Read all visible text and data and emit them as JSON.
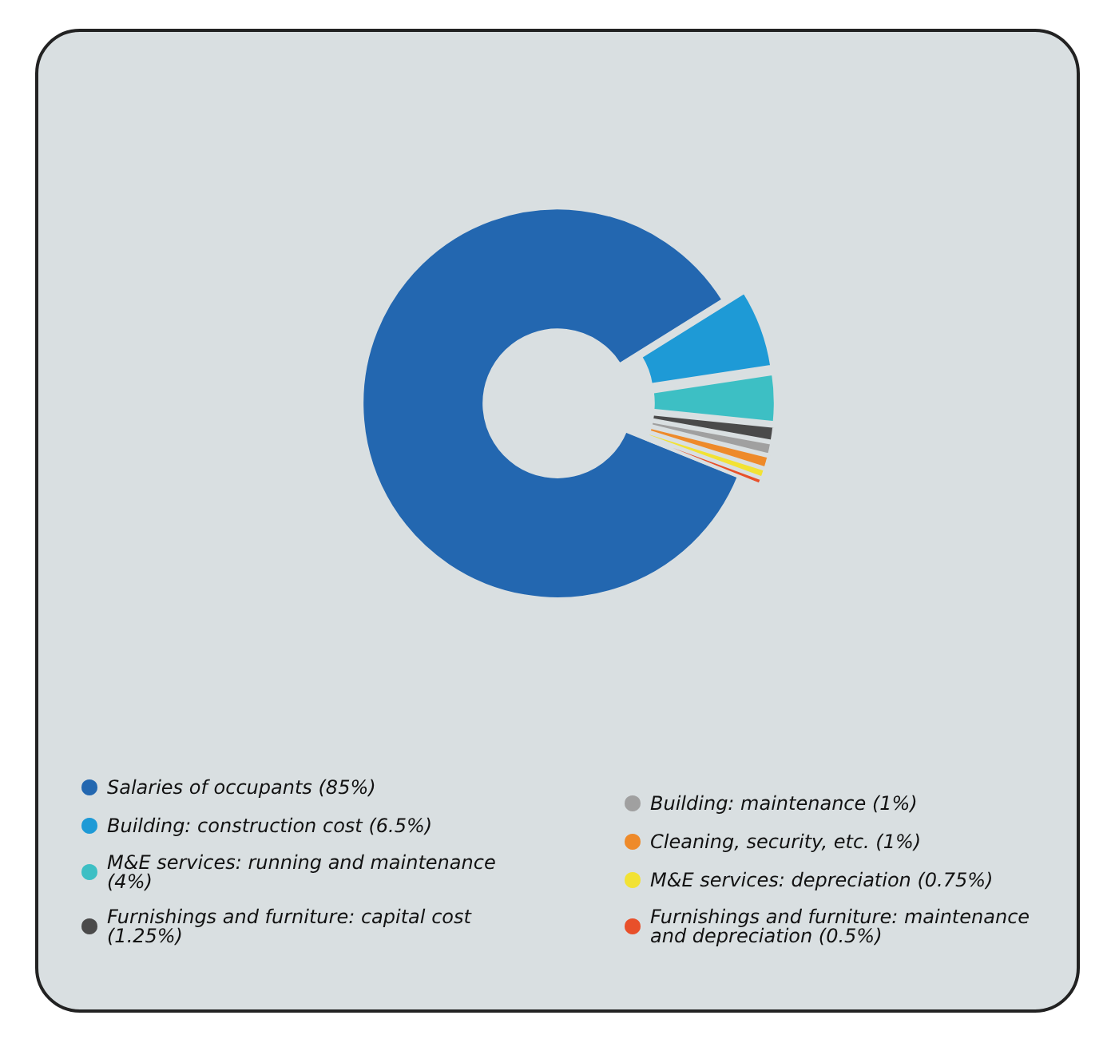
{
  "chart_data": {
    "type": "donut",
    "categories": [
      "Salaries of occupants (85%)",
      "Building: construction cost (6.5%)",
      "M&E services: running and maintenance (4%)",
      "Furnishings and furniture: capital cost (1.25%)",
      "Building: maintenance (1%)",
      "Cleaning, security, etc. (1%)",
      "M&E services: depreciation (0.75%)",
      "Furnishings and furniture: maintenance and depreciation (0.5%)"
    ],
    "values": [
      85,
      6.5,
      4,
      1.25,
      1,
      1,
      0.75,
      0.5
    ],
    "colors": [
      "#2367b0",
      "#1e9ad6",
      "#3dbfc4",
      "#4a4a4a",
      "#a0a0a0",
      "#ee8a2a",
      "#f2e234",
      "#e8502a"
    ],
    "legend": "bottom"
  }
}
